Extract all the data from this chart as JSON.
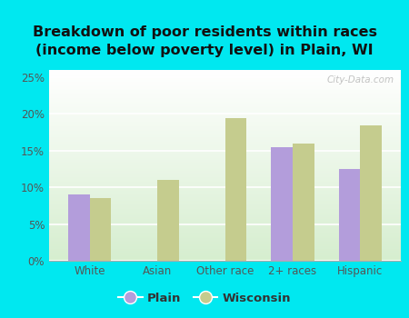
{
  "title": "Breakdown of poor residents within races\n(income below poverty level) in Plain, WI",
  "categories": [
    "White",
    "Asian",
    "Other race",
    "2+ races",
    "Hispanic"
  ],
  "plain_values": [
    9.0,
    0.0,
    0.0,
    15.5,
    12.5
  ],
  "wisconsin_values": [
    8.5,
    11.0,
    19.5,
    16.0,
    18.5
  ],
  "plain_color": "#b39ddb",
  "wisconsin_color": "#c5cc8e",
  "background_outer": "#00e8f0",
  "bg_top": "#ffffff",
  "bg_bottom": "#d6eecf",
  "ylim": [
    0,
    26
  ],
  "yticks": [
    0,
    5,
    10,
    15,
    20,
    25
  ],
  "ytick_labels": [
    "0%",
    "5%",
    "10%",
    "15%",
    "20%",
    "25%"
  ],
  "title_fontsize": 11.5,
  "bar_width": 0.32,
  "legend_labels": [
    "Plain",
    "Wisconsin"
  ],
  "watermark": "City-Data.com"
}
